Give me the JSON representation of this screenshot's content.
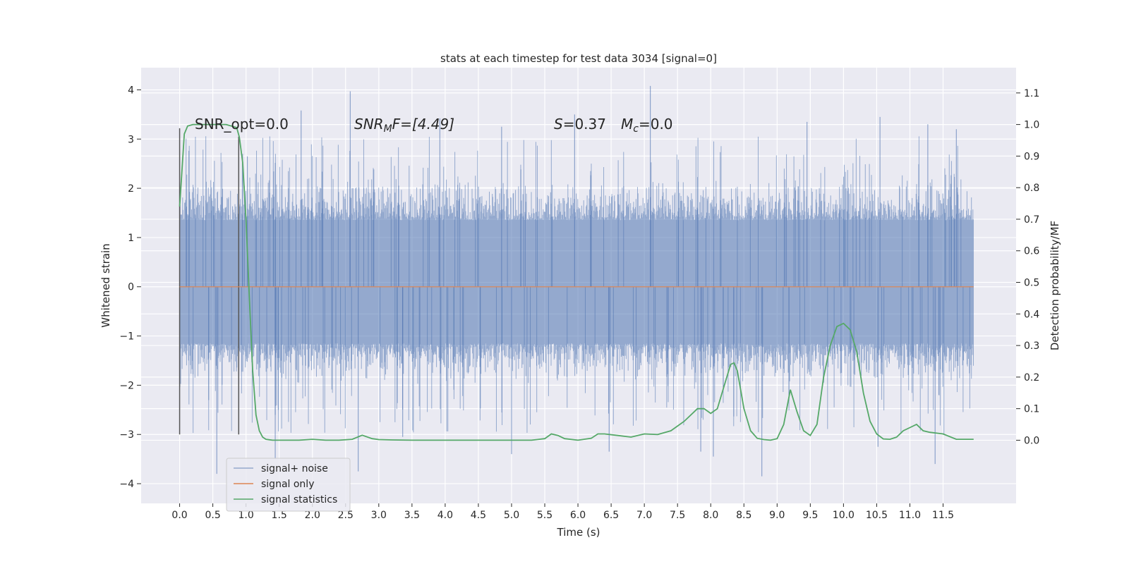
{
  "chart_data": {
    "type": "line",
    "title": "stats at each timestep for test data 3034 [signal=0]",
    "xlabel": "Time (s)",
    "ylabel_left": "Whitened strain",
    "ylabel_right": "Detection probability/MF",
    "xlim": [
      -0.58,
      12.6
    ],
    "ylim_left": [
      -4.4,
      4.45
    ],
    "ylim_right": [
      -0.2,
      1.18
    ],
    "x_ticks": [
      "0.0",
      "0.5",
      "1.0",
      "1.5",
      "2.0",
      "2.5",
      "3.0",
      "3.5",
      "4.0",
      "4.5",
      "5.0",
      "5.5",
      "6.0",
      "6.5",
      "7.0",
      "7.5",
      "8.0",
      "8.5",
      "9.0",
      "9.5",
      "10.0",
      "10.5",
      "11.0",
      "11.5"
    ],
    "y_left_ticks": [
      "4",
      "3",
      "2",
      "1",
      "0",
      "−1",
      "−2",
      "−3",
      "−4"
    ],
    "y_right_ticks": [
      "1.1",
      "1.0",
      "0.9",
      "0.8",
      "0.7",
      "0.6",
      "0.5",
      "0.4",
      "0.3",
      "0.2",
      "0.1",
      "0.0"
    ],
    "grid": true,
    "background": "#eaeaf2",
    "legend_position": "lower-left",
    "annotations": {
      "snr_opt": "SNR_opt=0.0",
      "snr_mf_base": "SNR",
      "snr_mf_sub": "M",
      "snr_mf_rest": "F=[4.49]",
      "s_sym": "S",
      "s_val": "=0.37",
      "mc_sym": "M",
      "mc_sub": "c",
      "mc_val": "=0.0"
    },
    "vertical_markers": [
      {
        "x": 0.0,
        "y_range": [
          -3.0,
          3.22
        ]
      },
      {
        "x": 0.89,
        "y_range": [
          -3.0,
          3.05
        ]
      }
    ],
    "series": [
      {
        "name": "signal+ noise",
        "color": "#4c72b0",
        "axis": "left",
        "style": "noise band",
        "dense_band": [
          -1.15,
          1.35
        ],
        "common_envelope": [
          -2.0,
          2.0
        ],
        "x_range": [
          0.0,
          11.96
        ],
        "peaks": [
          {
            "x": 2.57,
            "y": 3.97
          },
          {
            "x": 7.09,
            "y": 4.08
          },
          {
            "x": 1.83,
            "y": 3.58
          },
          {
            "x": 5.95,
            "y": 3.5
          },
          {
            "x": 3.92,
            "y": 3.42
          },
          {
            "x": 10.55,
            "y": 3.45
          },
          {
            "x": 9.45,
            "y": 3.35
          },
          {
            "x": 11.27,
            "y": 3.3
          },
          {
            "x": 11.7,
            "y": 3.2
          },
          {
            "x": 4.85,
            "y": 3.25
          },
          {
            "x": 1.02,
            "y": 2.65
          }
        ],
        "troughs": [
          {
            "x": 0.56,
            "y": -3.8
          },
          {
            "x": 2.69,
            "y": -3.75
          },
          {
            "x": 8.77,
            "y": -3.85
          },
          {
            "x": 11.38,
            "y": -3.6
          },
          {
            "x": 1.44,
            "y": -3.5
          },
          {
            "x": 5.0,
            "y": -3.4
          },
          {
            "x": 6.47,
            "y": -3.35
          },
          {
            "x": 8.04,
            "y": -3.45
          },
          {
            "x": 10.52,
            "y": -3.25
          },
          {
            "x": 7.85,
            "y": -3.35
          },
          {
            "x": 3.36,
            "y": -3.05
          }
        ]
      },
      {
        "name": "signal only",
        "color": "#dd8452",
        "axis": "left",
        "x": [
          0.0,
          11.96
        ],
        "y": [
          0.0,
          0.0
        ]
      },
      {
        "name": "signal statistics",
        "color": "#55a868",
        "axis": "right",
        "x": [
          0.0,
          0.07,
          0.12,
          0.2,
          0.3,
          0.4,
          0.5,
          0.6,
          0.7,
          0.78,
          0.86,
          0.9,
          0.95,
          1.0,
          1.05,
          1.1,
          1.15,
          1.2,
          1.25,
          1.3,
          1.4,
          1.6,
          1.8,
          2.0,
          2.2,
          2.4,
          2.6,
          2.75,
          2.9,
          3.0,
          3.2,
          3.5,
          4.0,
          4.5,
          5.0,
          5.3,
          5.5,
          5.6,
          5.7,
          5.8,
          6.0,
          6.2,
          6.3,
          6.4,
          6.6,
          6.8,
          7.0,
          7.2,
          7.4,
          7.6,
          7.8,
          7.9,
          8.0,
          8.1,
          8.2,
          8.3,
          8.35,
          8.4,
          8.5,
          8.6,
          8.7,
          8.8,
          8.9,
          9.0,
          9.1,
          9.2,
          9.3,
          9.4,
          9.5,
          9.6,
          9.7,
          9.8,
          9.9,
          10.0,
          10.1,
          10.2,
          10.3,
          10.4,
          10.5,
          10.6,
          10.7,
          10.8,
          10.9,
          11.0,
          11.1,
          11.2,
          11.3,
          11.5,
          11.7,
          11.96
        ],
        "y": [
          0.74,
          0.97,
          0.995,
          1.0,
          1.0,
          1.0,
          1.0,
          1.0,
          1.0,
          0.995,
          0.99,
          0.96,
          0.88,
          0.7,
          0.45,
          0.22,
          0.08,
          0.03,
          0.01,
          0.003,
          0.0,
          0.0,
          0.0,
          0.003,
          0.0,
          0.0,
          0.003,
          0.016,
          0.005,
          0.002,
          0.001,
          0.0,
          0.0,
          0.0,
          0.0,
          0.0,
          0.005,
          0.02,
          0.015,
          0.005,
          0.0,
          0.006,
          0.02,
          0.02,
          0.015,
          0.01,
          0.02,
          0.018,
          0.03,
          0.06,
          0.1,
          0.1,
          0.085,
          0.1,
          0.17,
          0.24,
          0.245,
          0.22,
          0.1,
          0.03,
          0.006,
          0.002,
          0.0,
          0.005,
          0.05,
          0.16,
          0.09,
          0.03,
          0.015,
          0.05,
          0.2,
          0.3,
          0.36,
          0.37,
          0.35,
          0.28,
          0.15,
          0.06,
          0.02,
          0.004,
          0.003,
          0.01,
          0.03,
          0.04,
          0.05,
          0.03,
          0.025,
          0.02,
          0.003,
          0.003
        ]
      }
    ]
  }
}
